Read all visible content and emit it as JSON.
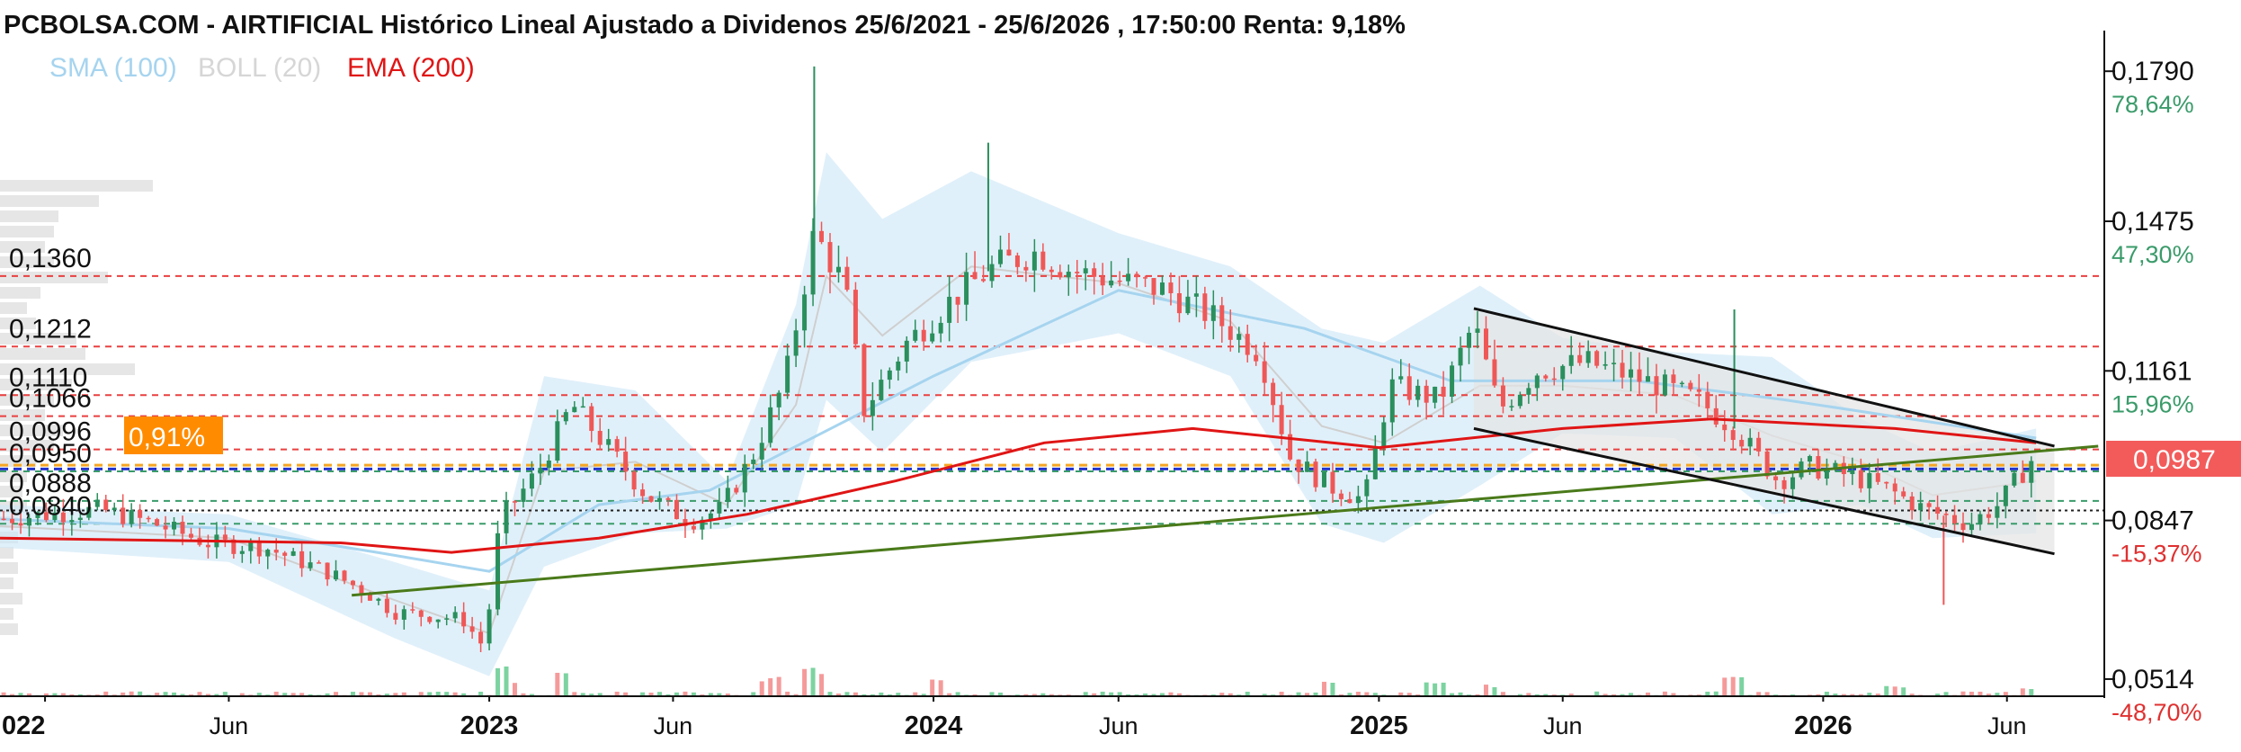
{
  "header": {
    "title": "PCBOLSA.COM - AIRTIFICIAL Histórico Lineal Ajustado a Dividenos 25/6/2021 - 25/6/2026 , 17:50:00 Renta: 9,18%"
  },
  "legend": [
    {
      "label": "SMA (100)",
      "color": "#a6d4ef"
    },
    {
      "label": "BOLL (20)",
      "color": "#d6d6d6"
    },
    {
      "label": "EMA (200)",
      "color": "#e01515"
    }
  ],
  "price_axis": {
    "labels": [
      {
        "price": 0.179,
        "text": "0,1790",
        "pct": "78,64%",
        "pct_color": "#3a9b6a"
      },
      {
        "price": 0.1475,
        "text": "0,1475",
        "pct": "47,30%",
        "pct_color": "#3a9b6a"
      },
      {
        "price": 0.1161,
        "text": "0,1161",
        "pct": "15,96%",
        "pct_color": "#3a9b6a"
      },
      {
        "price": 0.0847,
        "text": "0,0847",
        "pct": "-15,37%",
        "pct_color": "#e03030"
      },
      {
        "price": 0.0514,
        "text": "0,0514",
        "pct": "-48,70%",
        "pct_color": "#e03030"
      }
    ],
    "current": {
      "price": 0.0987,
      "text": "0,0987",
      "color": "#f35b5b"
    }
  },
  "time_axis": {
    "labels": [
      {
        "date": "2022-01-01",
        "text": "022",
        "major": true
      },
      {
        "date": "2022-06-01",
        "text": "Jun",
        "major": false
      },
      {
        "date": "2023-01-01",
        "text": "2023",
        "major": true
      },
      {
        "date": "2023-06-01",
        "text": "Jun",
        "major": false
      },
      {
        "date": "2024-01-01",
        "text": "2024",
        "major": true
      },
      {
        "date": "2024-06-01",
        "text": "Jun",
        "major": false
      },
      {
        "date": "2025-01-01",
        "text": "2025",
        "major": true
      },
      {
        "date": "2025-06-01",
        "text": "Jun",
        "major": false
      },
      {
        "date": "2026-01-01",
        "text": "2026",
        "major": true
      },
      {
        "date": "2026-06-01",
        "text": "Jun",
        "major": false
      }
    ]
  },
  "levels": [
    {
      "price": 0.136,
      "text": "0,1360",
      "color": "#e94040",
      "style": "dashed"
    },
    {
      "price": 0.1212,
      "text": "0,1212",
      "color": "#e94040",
      "style": "dashed"
    },
    {
      "price": 0.111,
      "text": "0,1110",
      "color": "#e94040",
      "style": "dashed"
    },
    {
      "price": 0.1066,
      "text": "0,1066",
      "color": "#e94040",
      "style": "dashed"
    },
    {
      "price": 0.0996,
      "text": "0,0996",
      "color": "#e94040",
      "style": "dashed"
    },
    {
      "price": 0.095,
      "text": "0,0950",
      "color": "#3a9b6a",
      "style": "dashed"
    },
    {
      "price": 0.0888,
      "text": "0,0888",
      "color": "#3a9b6a",
      "style": "dashed"
    },
    {
      "price": 0.084,
      "text": "0,0840",
      "color": "#3a9b6a",
      "style": "dashed"
    }
  ],
  "reference_lines": [
    {
      "price": 0.0963,
      "color": "#f5a623"
    },
    {
      "price": 0.0955,
      "color": "#2233cc"
    },
    {
      "price": 0.0868,
      "color": "#222222"
    }
  ],
  "badge": {
    "text": "0,91%",
    "color": "#ff8c00"
  },
  "chart_data": {
    "type": "candlestick",
    "x_range": [
      "2021-11-25",
      "2026-08-20"
    ],
    "ylim": [
      0.0478,
      0.1864
    ],
    "y_scale": "linear",
    "grid": false,
    "legend_position": "top-left",
    "price_anchors": [
      [
        "2021-11-25",
        0.085
      ],
      [
        "2022-02-15",
        0.087
      ],
      [
        "2022-04-01",
        0.084
      ],
      [
        "2022-05-15",
        0.08
      ],
      [
        "2022-07-01",
        0.079
      ],
      [
        "2022-08-20",
        0.074
      ],
      [
        "2022-09-20",
        0.07
      ],
      [
        "2022-10-15",
        0.0655
      ],
      [
        "2022-12-10",
        0.064
      ],
      [
        "2022-12-28",
        0.058
      ],
      [
        "2023-01-10",
        0.085
      ],
      [
        "2023-02-10",
        0.095
      ],
      [
        "2023-03-10",
        0.109
      ],
      [
        "2023-04-05",
        0.101
      ],
      [
        "2023-05-10",
        0.09
      ],
      [
        "2023-06-15",
        0.0845
      ],
      [
        "2023-07-10",
        0.087
      ],
      [
        "2023-08-05",
        0.098
      ],
      [
        "2023-09-01",
        0.114
      ],
      [
        "2023-09-25",
        0.145
      ],
      [
        "2023-10-20",
        0.134
      ],
      [
        "2023-11-05",
        0.108
      ],
      [
        "2023-12-10",
        0.122
      ],
      [
        "2024-01-20",
        0.132
      ],
      [
        "2024-02-20",
        0.138
      ],
      [
        "2024-03-25",
        0.141
      ],
      [
        "2024-04-25",
        0.137
      ],
      [
        "2024-06-01",
        0.135
      ],
      [
        "2024-07-10",
        0.133
      ],
      [
        "2024-08-20",
        0.127
      ],
      [
        "2024-09-25",
        0.12
      ],
      [
        "2024-10-20",
        0.098
      ],
      [
        "2024-11-20",
        0.092
      ],
      [
        "2024-12-20",
        0.089
      ],
      [
        "2025-01-10",
        0.113
      ],
      [
        "2025-02-20",
        0.11
      ],
      [
        "2025-03-20",
        0.126
      ],
      [
        "2025-04-10",
        0.108
      ],
      [
        "2025-05-10",
        0.116
      ],
      [
        "2025-06-20",
        0.118
      ],
      [
        "2025-08-20",
        0.113
      ],
      [
        "2025-09-20",
        0.11
      ],
      [
        "2025-10-20",
        0.104
      ],
      [
        "2025-11-25",
        0.093
      ],
      [
        "2025-12-20",
        0.096
      ],
      [
        "2026-01-25",
        0.094
      ],
      [
        "2026-02-25",
        0.091
      ],
      [
        "2026-03-25",
        0.087
      ],
      [
        "2026-05-01",
        0.084
      ],
      [
        "2026-05-25",
        0.088
      ],
      [
        "2026-06-25",
        0.0987
      ]
    ],
    "sma_100": [
      [
        "2021-11-25",
        0.085
      ],
      [
        "2022-06-01",
        0.083
      ],
      [
        "2022-10-01",
        0.078
      ],
      [
        "2023-01-01",
        0.074
      ],
      [
        "2023-04-01",
        0.088
      ],
      [
        "2023-07-01",
        0.091
      ],
      [
        "2023-10-01",
        0.103
      ],
      [
        "2024-01-01",
        0.115
      ],
      [
        "2024-06-01",
        0.133
      ],
      [
        "2024-11-01",
        0.125
      ],
      [
        "2025-03-01",
        0.114
      ],
      [
        "2025-08-01",
        0.114
      ],
      [
        "2025-12-01",
        0.11
      ],
      [
        "2026-06-25",
        0.102
      ]
    ],
    "ema_200": [
      [
        "2021-11-25",
        0.081
      ],
      [
        "2022-09-01",
        0.08
      ],
      [
        "2022-12-01",
        0.078
      ],
      [
        "2023-04-01",
        0.081
      ],
      [
        "2023-08-01",
        0.086
      ],
      [
        "2023-12-01",
        0.093
      ],
      [
        "2024-04-01",
        0.101
      ],
      [
        "2024-08-01",
        0.104
      ],
      [
        "2025-01-01",
        0.1
      ],
      [
        "2025-06-01",
        0.104
      ],
      [
        "2025-10-01",
        0.106
      ],
      [
        "2026-03-01",
        0.104
      ],
      [
        "2026-06-25",
        0.101
      ]
    ],
    "bollinger": [
      [
        "2021-11-25",
        0.088,
        0.079
      ],
      [
        "2022-06-01",
        0.086,
        0.076
      ],
      [
        "2022-10-15",
        0.076,
        0.06
      ],
      [
        "2023-01-01",
        0.07,
        0.052
      ],
      [
        "2023-02-15",
        0.115,
        0.075
      ],
      [
        "2023-05-01",
        0.112,
        0.082
      ],
      [
        "2023-07-15",
        0.093,
        0.083
      ],
      [
        "2023-09-10",
        0.13,
        0.088
      ],
      [
        "2023-10-05",
        0.162,
        0.11
      ],
      [
        "2023-11-20",
        0.148,
        0.099
      ],
      [
        "2024-02-01",
        0.158,
        0.118
      ],
      [
        "2024-06-01",
        0.145,
        0.124
      ],
      [
        "2024-09-01",
        0.138,
        0.115
      ],
      [
        "2024-11-15",
        0.125,
        0.084
      ],
      [
        "2025-01-05",
        0.122,
        0.08
      ],
      [
        "2025-03-25",
        0.134,
        0.092
      ],
      [
        "2025-06-01",
        0.123,
        0.103
      ],
      [
        "2025-09-01",
        0.12,
        0.102
      ],
      [
        "2025-11-20",
        0.119,
        0.086
      ],
      [
        "2026-02-01",
        0.106,
        0.088
      ],
      [
        "2026-04-01",
        0.099,
        0.081
      ],
      [
        "2026-06-25",
        0.104,
        0.082
      ]
    ],
    "trendlines": [
      {
        "color": "#4a7a1a",
        "points": [
          [
            "2022-09-10",
            0.069
          ],
          [
            "2026-08-15",
            0.1003
          ]
        ]
      },
      {
        "color": "#111111",
        "points": [
          [
            "2025-03-20",
            0.1292
          ],
          [
            "2026-07-10",
            0.1003
          ]
        ]
      },
      {
        "color": "#111111",
        "points": [
          [
            "2025-03-20",
            0.104
          ],
          [
            "2026-07-10",
            0.0777
          ]
        ]
      }
    ],
    "channel_fill": [
      [
        "2025-03-20",
        0.1292
      ],
      [
        "2026-07-10",
        0.1003
      ],
      [
        "2026-07-10",
        0.0777
      ],
      [
        "2025-03-20",
        0.104
      ]
    ],
    "volume_spikes": [
      [
        "2023-01-10",
        0.9
      ],
      [
        "2023-01-20",
        0.5
      ],
      [
        "2023-03-01",
        0.7
      ],
      [
        "2023-08-20",
        0.6
      ],
      [
        "2023-09-25",
        0.9
      ],
      [
        "2024-01-05",
        0.5
      ],
      [
        "2024-11-20",
        0.45
      ],
      [
        "2025-02-15",
        0.4
      ],
      [
        "2025-04-01",
        0.35
      ],
      [
        "2025-10-20",
        0.6
      ],
      [
        "2026-03-01",
        0.3
      ],
      [
        "2026-06-20",
        0.25
      ]
    ]
  }
}
